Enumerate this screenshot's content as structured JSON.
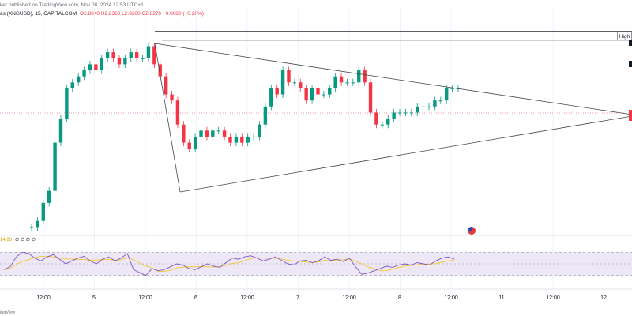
{
  "header": {
    "author": "ker published on TradingView.com, Nov 08, 2024 12:53 UTC+1",
    "symbol": "as (XNGUSD), 15, CAPITALCOM",
    "ohlc": "O2.8340 H2.8360 L2.8260 C2.8270 −0.0080 (−0.28%)"
  },
  "rsi_label": {
    "text": "14 28",
    "values": "∅ ∅ ∅ ∅"
  },
  "high_label": "High",
  "footer": "ingView",
  "colors": {
    "up": "#089981",
    "down": "#f23645",
    "rsi_line": "#7e57c2",
    "rsi_ma": "#f5c518",
    "rsi_band": "#ede7f6",
    "trendline": "#434651"
  },
  "icons": {
    "event": "us-flag-icon"
  },
  "chart_data": {
    "type": "line",
    "title": "",
    "x_tick_labels": [
      "12:00",
      "5",
      "12:00",
      "6",
      "12:00",
      "7",
      "12:00",
      "8",
      "12:00",
      "11",
      "12:00",
      "12"
    ],
    "price_range": [
      2.55,
      2.9
    ],
    "price_series": [
      2.56,
      2.57,
      2.6,
      2.62,
      2.7,
      2.74,
      2.79,
      2.8,
      2.81,
      2.82,
      2.83,
      2.82,
      2.84,
      2.85,
      2.84,
      2.83,
      2.84,
      2.85,
      2.84,
      2.84,
      2.86,
      2.83,
      2.81,
      2.78,
      2.77,
      2.73,
      2.7,
      2.69,
      2.71,
      2.72,
      2.71,
      2.72,
      2.72,
      2.71,
      2.7,
      2.71,
      2.7,
      2.71,
      2.71,
      2.73,
      2.76,
      2.79,
      2.78,
      2.82,
      2.8,
      2.8,
      2.79,
      2.77,
      2.79,
      2.78,
      2.78,
      2.79,
      2.81,
      2.8,
      2.8,
      2.8,
      2.82,
      2.8,
      2.75,
      2.73,
      2.73,
      2.74,
      2.75,
      2.75,
      2.75,
      2.75,
      2.76,
      2.76,
      2.76,
      2.77,
      2.77,
      2.79,
      2.79,
      2.79
    ],
    "annotations": {
      "resistance_line": [
        [
          0,
          2.885
        ],
        [
          1,
          2.83
        ]
      ],
      "support_line": [
        [
          0,
          2.71
        ],
        [
          1,
          2.82
        ]
      ],
      "horizontal_lines": [
        2.885,
        2.87
      ]
    },
    "rsi_series": [
      40,
      45,
      62,
      70,
      68,
      60,
      55,
      62,
      66,
      58,
      50,
      55,
      60,
      63,
      55,
      50,
      58,
      62,
      55,
      60,
      68,
      40,
      35,
      30,
      42,
      38,
      40,
      45,
      50,
      48,
      42,
      40,
      45,
      50,
      46,
      44,
      52,
      60,
      58,
      62,
      64,
      60,
      55,
      58,
      62,
      56,
      50,
      48,
      55,
      56,
      52,
      55,
      62,
      56,
      58,
      54,
      60,
      45,
      32,
      34,
      38,
      42,
      46,
      44,
      48,
      50,
      48,
      52,
      50,
      48,
      55,
      60,
      62,
      58
    ],
    "rsi_range": [
      20,
      80
    ]
  }
}
